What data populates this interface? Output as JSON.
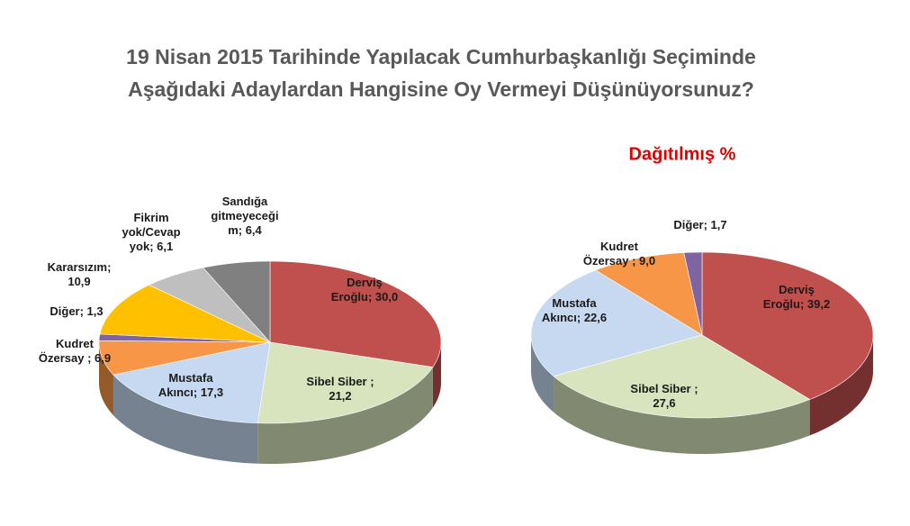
{
  "chart_data": [
    {
      "type": "pie3d",
      "title": "19 Nisan 2015 Tarihinde Yapılacak Cumhurbaşkanlığı Seçiminde\nAşağıdaki Adaylardan Hangisine Oy Vermeyi Düşünüyorsunuz?",
      "values": [
        30.0,
        21.2,
        17.3,
        6.9,
        1.3,
        10.9,
        6.1,
        6.4
      ],
      "value_labels": [
        "Derviş\nEroğlu; 30,0",
        "Sibel Siber ;\n21,2",
        "Mustafa\nAkıncı; 17,3",
        "Kudret\nÖzersay ; 6,9",
        "Diğer; 1,3",
        "Kararsızım;\n10,9",
        "Fikrim\nyok/Cevap\nyok; 6,1",
        "Sandığa\ngitmeyeceği\nm; 6,4"
      ],
      "colors": [
        "#c0504d",
        "#d7e4bd",
        "#c6d9f1",
        "#f79646",
        "#8064a2",
        "#ffc000",
        "#bfbfbf",
        "#808080"
      ]
    },
    {
      "type": "pie3d",
      "subtitle": "Dağıtılmış %",
      "values": [
        39.2,
        27.6,
        22.6,
        9.0,
        1.7
      ],
      "value_labels": [
        "Derviş\nEroğlu; 39,2",
        "Sibel Siber ;\n27,6",
        "Mustafa\nAkıncı; 22,6",
        "Kudret\nÖzersay ; 9,0",
        "Diğer; 1,7"
      ],
      "colors": [
        "#c0504d",
        "#d7e4bd",
        "#c6d9f1",
        "#f79646",
        "#8064a2"
      ]
    }
  ]
}
